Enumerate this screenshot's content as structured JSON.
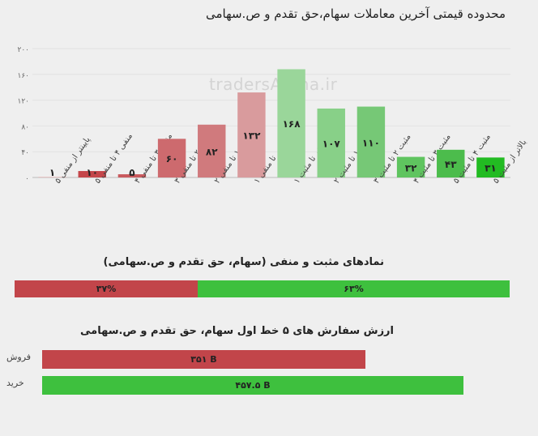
{
  "title": "محدوده قیمتی آخرین معاملات سهام،حق تقدم و ص.سهامی",
  "watermark": "tradersArena.ir",
  "chart_data": {
    "type": "bar",
    "title": "محدوده قیمتی آخرین معاملات سهام،حق تقدم و ص.سهامی",
    "categories": [
      "پایینتر از منفی ۵",
      "منفی ۴ تا منفی ۵",
      "منفی ۳ تا منفی ۴",
      "منفی ۲ تا منفی ۳",
      "منفی ۱ تا منفی ۲",
      "صفر تا منفی ۱",
      "صفر تا مثبت ۱",
      "مثبت ۱ تا مثبت ۲",
      "مثبت ۲ تا مثبت ۳",
      "مثبت ۳ تا مثبت ۴",
      "مثبت ۴ تا مثبت ۵",
      "بالاتر از مثبت ۵"
    ],
    "values": [
      1,
      10,
      5,
      60,
      82,
      132,
      168,
      107,
      110,
      32,
      43,
      31
    ],
    "value_labels": [
      "۱",
      "۱۰",
      "۵",
      "۶۰",
      "۸۲",
      "۱۳۲",
      "۱۶۸",
      "۱۰۷",
      "۱۱۰",
      "۳۲",
      "۴۳",
      "۳۱"
    ],
    "colors": [
      "#e6b8b8",
      "#c4464a",
      "#c95a5e",
      "#cd6a6e",
      "#d07a7d",
      "#d99b9d",
      "#9ad69a",
      "#88d088",
      "#76c876",
      "#5fc45f",
      "#4cbc4c",
      "#22bb22"
    ],
    "yticks": [
      0,
      40,
      80,
      120,
      160,
      200
    ],
    "ytick_labels": [
      "۰",
      "۴۰",
      "۸۰",
      "۱۲۰",
      "۱۶۰",
      "۲۰۰"
    ],
    "ylim": [
      0,
      200
    ],
    "grid": true
  },
  "posneg": {
    "title": "نمادهای مثبت و منفی (سهام، حق تقدم و ص.سهامی)",
    "negative_pct": 37,
    "negative_label": "۳۷%",
    "positive_pct": 63,
    "positive_label": "۶۳%",
    "negative_color": "#c2454a",
    "positive_color": "#3ec03e"
  },
  "orders": {
    "title": "ارزش سفارش های ۵ خط اول سهام، حق تقدم و ص.سهامی",
    "sell": {
      "label": "فروش",
      "value": 351,
      "value_label": "۳۵۱ B",
      "color": "#c2454a"
    },
    "buy": {
      "label": "خرید",
      "value": 457.5,
      "value_label": "۴۵۷.۵ B",
      "color": "#3ec03e"
    }
  }
}
